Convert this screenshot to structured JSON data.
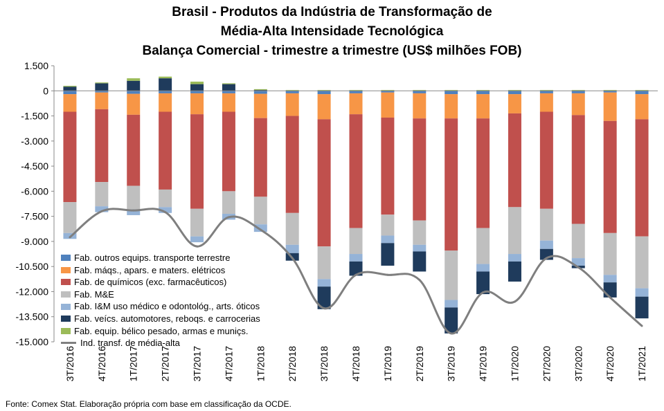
{
  "title_lines": [
    "Brasil - Produtos da Indústria de Transformação de",
    "Média-Alta Intensidade Tecnológica",
    "Balança Comercial - trimestre a trimestre (US$ milhões FOB)"
  ],
  "source": "Fonte: Comex Stat. Elaboração própria com base em classificação da OCDE.",
  "colors": {
    "outros_transporte": "#4f81bd",
    "maquinas_eletricos": "#f79646",
    "quimicos": "#c0504d",
    "me": "#bfbfbf",
    "im_medico": "#95b3d7",
    "veiculos": "#1f3b5c",
    "belico": "#9bbb59",
    "line": "#7f7f7f"
  },
  "chart_data": {
    "type": "bar",
    "stacked": true,
    "categories": [
      "3T/2016",
      "4T/2016",
      "1T/2017",
      "2T/2017",
      "3T/2017",
      "4T/2017",
      "1T/2018",
      "2T/2018",
      "3T/2018",
      "4T/2018",
      "1T/2019",
      "2T/2019",
      "3T/2019",
      "4T/2019",
      "1T/2020",
      "2T/2020",
      "3T/2020",
      "4T/2020",
      "1T/2021"
    ],
    "ylim": [
      -15000,
      1500
    ],
    "yticks": [
      1500,
      0,
      -1500,
      -3000,
      -4500,
      -6000,
      -7500,
      -9000,
      -10500,
      -12000,
      -13500,
      -15000
    ],
    "ytick_labels": [
      "1.500",
      "0",
      "-1.500",
      "-3.000",
      "-4.500",
      "-6.000",
      "-7.500",
      "-9.000",
      "-10.500",
      "-12.000",
      "-13.500",
      "-15.000"
    ],
    "series": [
      {
        "name": "Fab. outros equips. transporte terrestre",
        "key": "outros_transporte",
        "values": [
          -200,
          -100,
          -180,
          -150,
          -150,
          -150,
          -180,
          -150,
          -200,
          -150,
          -100,
          -150,
          -200,
          -200,
          -200,
          -150,
          -150,
          -100,
          -200
        ]
      },
      {
        "name": "Fab. máqs., apars. e maters. elétricos",
        "key": "maquinas_eletricos",
        "values": [
          -1050,
          -1000,
          -1250,
          -1100,
          -1250,
          -1100,
          -1450,
          -1350,
          -1500,
          -1250,
          -1500,
          -1500,
          -1450,
          -1450,
          -1150,
          -1100,
          -1300,
          -1700,
          -1500
        ]
      },
      {
        "name": "Fab. de químicos (exc. farmacêuticos)",
        "key": "quimicos",
        "values": [
          -5400,
          -4350,
          -4250,
          -4650,
          -5650,
          -4750,
          -4700,
          -5800,
          -7600,
          -6800,
          -5800,
          -6100,
          -7900,
          -6550,
          -5600,
          -5800,
          -6500,
          -6700,
          -7000
        ]
      },
      {
        "name": "Fab. M&E",
        "key": "me",
        "values": [
          -1850,
          -1450,
          -1400,
          -1050,
          -1650,
          -1350,
          -1650,
          -1900,
          -1950,
          -1550,
          -1250,
          -1450,
          -2950,
          -2150,
          -2800,
          -1900,
          -2050,
          -2500,
          -3100
        ]
      },
      {
        "name": "Fab. I&M uso médico e odontológ., arts. óticos",
        "key": "im_medico",
        "values": [
          -350,
          -350,
          -350,
          -350,
          -350,
          -350,
          -450,
          -500,
          -450,
          -450,
          -450,
          -400,
          -450,
          -450,
          -450,
          -500,
          -450,
          -450,
          -500
        ]
      },
      {
        "name": "Fab. veícs. automotores, reboqs. e carrocerias",
        "key": "veiculos",
        "values": [
          250,
          450,
          600,
          750,
          400,
          400,
          50,
          -450,
          -1350,
          -850,
          -1350,
          -1200,
          -1550,
          -1350,
          -1200,
          -650,
          -150,
          -900,
          -1300
        ]
      },
      {
        "name": "Fab. equip. bélico pesado, armas e muniçs.",
        "key": "belico",
        "values": [
          50,
          50,
          150,
          100,
          150,
          50,
          50,
          50,
          50,
          50,
          50,
          50,
          50,
          50,
          50,
          50,
          50,
          50,
          50
        ]
      }
    ],
    "line_series": {
      "name": "Ind. transf. de média-alta",
      "values": [
        -8750,
        -7200,
        -7150,
        -7250,
        -9300,
        -7550,
        -8300,
        -10000,
        -13000,
        -11000,
        -11000,
        -11300,
        -14500,
        -12050,
        -12600,
        -10000,
        -10550,
        -12350,
        -14050
      ]
    }
  }
}
